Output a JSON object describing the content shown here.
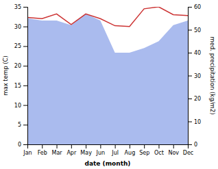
{
  "chart_data": {
    "type": "line",
    "categories": [
      "Jan",
      "Feb",
      "Mar",
      "Apr",
      "May",
      "Jun",
      "Jul",
      "Aug",
      "Sep",
      "Oct",
      "Nov",
      "Dec"
    ],
    "series": [
      {
        "type": "area",
        "axis": "y2",
        "color": "#aabbee",
        "values": [
          55,
          54,
          54,
          52,
          57,
          54,
          40,
          40,
          42,
          45,
          52,
          54
        ]
      },
      {
        "type": "line",
        "color": "#cc3333",
        "values": [
          32.3,
          32.0,
          33.2,
          30.5,
          33.2,
          32.0,
          30.2,
          30.0,
          34.5,
          35.0,
          33.0,
          32.8
        ]
      }
    ],
    "xlabel": "date (month)",
    "ylabel": "max temp (C)",
    "y2label": "med. precipitation (kg/m2)",
    "ylim": [
      0,
      35
    ],
    "yticks": [
      0,
      5,
      10,
      15,
      20,
      25,
      30,
      35
    ],
    "y2lim": [
      0,
      60
    ],
    "y2ticks": [
      0,
      10,
      20,
      30,
      40,
      50,
      60
    ]
  }
}
